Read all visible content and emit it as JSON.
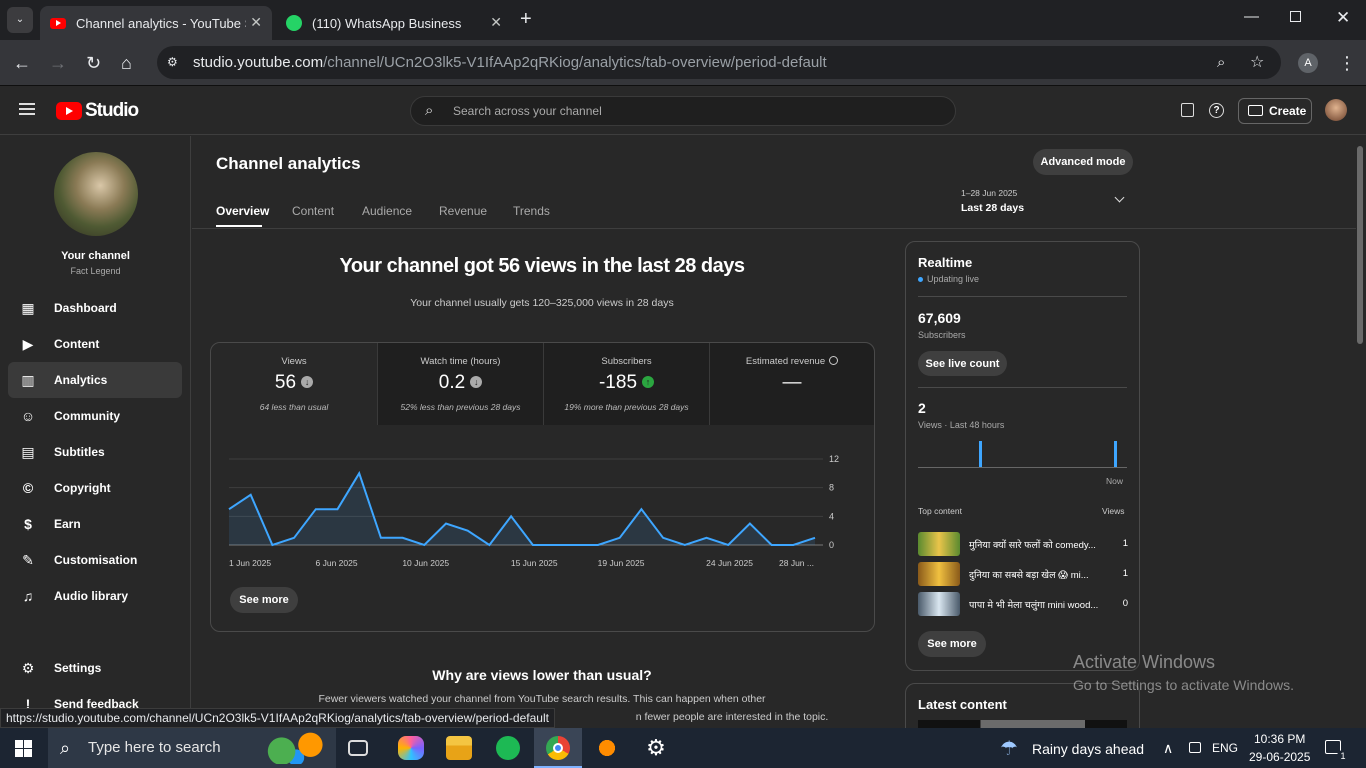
{
  "browser": {
    "tabs": [
      {
        "title": "Channel analytics - YouTube Studio",
        "active": true
      },
      {
        "title": "(110) WhatsApp Business",
        "active": false
      }
    ],
    "url_host": "studio.youtube.com",
    "url_path": "/channel/UCn2O3lk5-V1IfAAp2qRKiog/analytics/tab-overview/period-default",
    "profile_letter": "A"
  },
  "header": {
    "logo_text": "Studio",
    "search_placeholder": "Search across your channel",
    "create_label": "Create"
  },
  "sidebar": {
    "channel_title": "Your channel",
    "channel_name": "Fact Legend",
    "items": [
      {
        "label": "Dashboard",
        "icon": "dashboard-icon"
      },
      {
        "label": "Content",
        "icon": "content-icon"
      },
      {
        "label": "Analytics",
        "icon": "analytics-icon",
        "active": true
      },
      {
        "label": "Community",
        "icon": "community-icon"
      },
      {
        "label": "Subtitles",
        "icon": "subtitles-icon"
      },
      {
        "label": "Copyright",
        "icon": "copyright-icon"
      },
      {
        "label": "Earn",
        "icon": "earn-icon"
      },
      {
        "label": "Customisation",
        "icon": "customisation-icon"
      },
      {
        "label": "Audio library",
        "icon": "audio-library-icon"
      }
    ],
    "settings_label": "Settings",
    "feedback_label": "Send feedback"
  },
  "main": {
    "page_title": "Channel analytics",
    "advanced_mode_label": "Advanced mode",
    "tabs": [
      "Overview",
      "Content",
      "Audience",
      "Revenue",
      "Trends"
    ],
    "date_range": "1–28 Jun 2025",
    "date_period": "Last 28 days",
    "headline": "Your channel got 56 views in the last 28 days",
    "subheadline": "Your channel usually gets 120–325,000 views in 28 days",
    "metrics": [
      {
        "label": "Views",
        "value": "56",
        "note": "64 less than usual",
        "trend": "down"
      },
      {
        "label": "Watch time (hours)",
        "value": "0.2",
        "note": "52% less than previous 28 days",
        "trend": "down"
      },
      {
        "label": "Subscribers",
        "value": "-185",
        "note": "19% more than previous 28 days",
        "trend": "up"
      },
      {
        "label": "Estimated revenue",
        "value": "—",
        "note": "",
        "trend": "none"
      }
    ],
    "see_more_label": "See more",
    "why_title": "Why are views lower than usual?",
    "why_text_1": "Fewer viewers watched your channel from YouTube search results. This can happen when other",
    "why_text_2": "n fewer people are interested in the topic."
  },
  "chart_data": {
    "type": "line",
    "x": [
      "1 Jun",
      "2 Jun",
      "3 Jun",
      "4 Jun",
      "5 Jun",
      "6 Jun",
      "7 Jun",
      "8 Jun",
      "9 Jun",
      "10 Jun",
      "11 Jun",
      "12 Jun",
      "13 Jun",
      "14 Jun",
      "15 Jun",
      "16 Jun",
      "17 Jun",
      "18 Jun",
      "19 Jun",
      "20 Jun",
      "21 Jun",
      "22 Jun",
      "23 Jun",
      "24 Jun",
      "25 Jun",
      "26 Jun",
      "27 Jun",
      "28 Jun"
    ],
    "series": [
      {
        "values": [
          5,
          7,
          0,
          1,
          5,
          5,
          10,
          1,
          1,
          0,
          3,
          2,
          0,
          4,
          0,
          0,
          0,
          0,
          1,
          5,
          1,
          0,
          1,
          0,
          3,
          0,
          0,
          1
        ]
      }
    ],
    "x_tick_labels": [
      "1 Jun 2025",
      "6 Jun 2025",
      "10 Jun 2025",
      "15 Jun 2025",
      "19 Jun 2025",
      "24 Jun 2025",
      "28 Jun ..."
    ],
    "y_ticks": [
      "0",
      "4",
      "8",
      "12"
    ],
    "ylim": [
      0,
      12
    ],
    "color": "#3ea6ff"
  },
  "realtime": {
    "title": "Realtime",
    "status": "Updating live",
    "subscribers_value": "67,609",
    "subscribers_label": "Subscribers",
    "see_live_label": "See live count",
    "views_value": "2",
    "views_label": "Views · Last 48 hours",
    "bars": [
      0,
      0,
      0,
      0,
      0,
      0,
      0,
      0,
      0,
      0,
      0,
      0,
      0,
      0,
      1,
      0,
      0,
      0,
      0,
      0,
      0,
      0,
      0,
      0,
      0,
      0,
      0,
      0,
      0,
      0,
      0,
      0,
      0,
      0,
      0,
      0,
      0,
      0,
      0,
      0,
      0,
      0,
      0,
      0,
      0,
      1,
      0,
      0
    ],
    "now_label": "Now",
    "top_content_label": "Top content",
    "views_col_label": "Views",
    "top_content": [
      {
        "title": "मुनिया क्यों सारे फलों को comedy...",
        "views": "1"
      },
      {
        "title": "दुनिया का सबसे बड़ा खेल 😱 mi...",
        "views": "1"
      },
      {
        "title": "पापा मे भी मेला चलुंगा mini wood...",
        "views": "0"
      }
    ],
    "see_more_label": "See more",
    "latest_content_label": "Latest content"
  },
  "overlay": {
    "activate_title": "Activate Windows",
    "activate_sub": "Go to Settings to activate Windows.",
    "status_url": "https://studio.youtube.com/channel/UCn2O3lk5-V1IfAAp2qRKiog/analytics/tab-overview/period-default"
  },
  "taskbar": {
    "search_placeholder": "Type here to search",
    "weather": "Rainy days ahead",
    "language": "ENG",
    "time": "10:36 PM",
    "date": "29-06-2025",
    "notifications": "1"
  }
}
